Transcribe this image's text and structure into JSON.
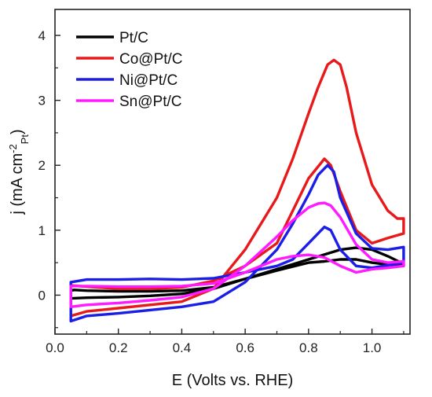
{
  "chart_data": {
    "type": "line",
    "xlabel": "E (Volts vs. RHE)",
    "ylabel_parts": {
      "main": "j (mA cm",
      "sup": "-2",
      "sub": "Pt",
      "close": ")"
    },
    "xlim": [
      0.0,
      1.12
    ],
    "ylim": [
      -0.6,
      4.4
    ],
    "xticks": [
      "0.0",
      "0.2",
      "0.4",
      "0.6",
      "0.8",
      "1.0"
    ],
    "yticks": [
      "0",
      "1",
      "2",
      "3",
      "4"
    ],
    "xtick_values": [
      0.0,
      0.2,
      0.4,
      0.6,
      0.8,
      1.0
    ],
    "ytick_values": [
      0,
      1,
      2,
      3,
      4
    ],
    "legend_position": "top-left",
    "grid": false,
    "series": [
      {
        "name": "Pt/C",
        "color": "#000000",
        "x": [
          0.05,
          0.1,
          0.2,
          0.3,
          0.4,
          0.5,
          0.6,
          0.7,
          0.8,
          0.9,
          0.95,
          1.0,
          1.05,
          1.1,
          1.1,
          1.05,
          1.0,
          0.95,
          0.9,
          0.85,
          0.8,
          0.7,
          0.6,
          0.5,
          0.4,
          0.3,
          0.2,
          0.1,
          0.06,
          0.05,
          0.05
        ],
        "y": [
          -0.05,
          -0.04,
          -0.03,
          -0.01,
          0.02,
          0.1,
          0.25,
          0.4,
          0.55,
          0.7,
          0.73,
          0.7,
          0.6,
          0.48,
          0.45,
          0.47,
          0.5,
          0.55,
          0.55,
          0.52,
          0.5,
          0.38,
          0.25,
          0.12,
          0.07,
          0.06,
          0.06,
          0.07,
          0.08,
          0.07,
          -0.05
        ]
      },
      {
        "name": "Co@Pt/C",
        "color": "#e8191a",
        "x": [
          0.05,
          0.1,
          0.2,
          0.3,
          0.4,
          0.5,
          0.6,
          0.7,
          0.75,
          0.8,
          0.83,
          0.86,
          0.88,
          0.9,
          0.92,
          0.95,
          1.0,
          1.05,
          1.08,
          1.1,
          1.1,
          1.05,
          1.0,
          0.95,
          0.9,
          0.87,
          0.85,
          0.8,
          0.75,
          0.7,
          0.6,
          0.5,
          0.4,
          0.3,
          0.2,
          0.1,
          0.05,
          0.05
        ],
        "y": [
          -0.32,
          -0.25,
          -0.2,
          -0.15,
          -0.1,
          0.1,
          0.7,
          1.5,
          2.1,
          2.8,
          3.2,
          3.55,
          3.62,
          3.55,
          3.2,
          2.5,
          1.7,
          1.3,
          1.18,
          1.18,
          0.95,
          0.88,
          0.8,
          1.0,
          1.6,
          2.0,
          2.1,
          1.8,
          1.3,
          0.8,
          0.45,
          0.22,
          0.12,
          0.1,
          0.1,
          0.13,
          0.15,
          -0.32
        ]
      },
      {
        "name": "Ni@Pt/C",
        "color": "#1b1ee6",
        "x": [
          0.05,
          0.1,
          0.2,
          0.3,
          0.4,
          0.5,
          0.6,
          0.7,
          0.75,
          0.8,
          0.83,
          0.86,
          0.88,
          0.9,
          0.95,
          1.0,
          1.05,
          1.1,
          1.1,
          1.05,
          1.0,
          0.95,
          0.9,
          0.87,
          0.85,
          0.8,
          0.75,
          0.7,
          0.6,
          0.5,
          0.4,
          0.3,
          0.2,
          0.1,
          0.05,
          0.05
        ],
        "y": [
          -0.4,
          -0.32,
          -0.28,
          -0.23,
          -0.18,
          -0.1,
          0.2,
          0.7,
          1.1,
          1.55,
          1.85,
          2.0,
          1.9,
          1.5,
          0.95,
          0.72,
          0.7,
          0.74,
          0.5,
          0.46,
          0.42,
          0.45,
          0.7,
          1.0,
          1.05,
          0.8,
          0.55,
          0.45,
          0.35,
          0.26,
          0.24,
          0.25,
          0.24,
          0.24,
          0.2,
          -0.4
        ]
      },
      {
        "name": "Sn@Pt/C",
        "color": "#ff1aff",
        "x": [
          0.05,
          0.1,
          0.2,
          0.3,
          0.4,
          0.5,
          0.6,
          0.7,
          0.75,
          0.8,
          0.83,
          0.85,
          0.87,
          0.9,
          0.95,
          1.0,
          1.05,
          1.1,
          1.1,
          1.05,
          1.0,
          0.95,
          0.9,
          0.85,
          0.8,
          0.75,
          0.7,
          0.6,
          0.5,
          0.4,
          0.3,
          0.2,
          0.1,
          0.05,
          0.05
        ],
        "y": [
          -0.18,
          -0.15,
          -0.12,
          -0.08,
          -0.03,
          0.1,
          0.45,
          0.9,
          1.15,
          1.35,
          1.41,
          1.42,
          1.38,
          1.2,
          0.78,
          0.55,
          0.5,
          0.52,
          0.45,
          0.42,
          0.4,
          0.35,
          0.45,
          0.58,
          0.62,
          0.6,
          0.55,
          0.35,
          0.18,
          0.14,
          0.13,
          0.13,
          0.14,
          0.14,
          -0.18
        ]
      }
    ]
  }
}
